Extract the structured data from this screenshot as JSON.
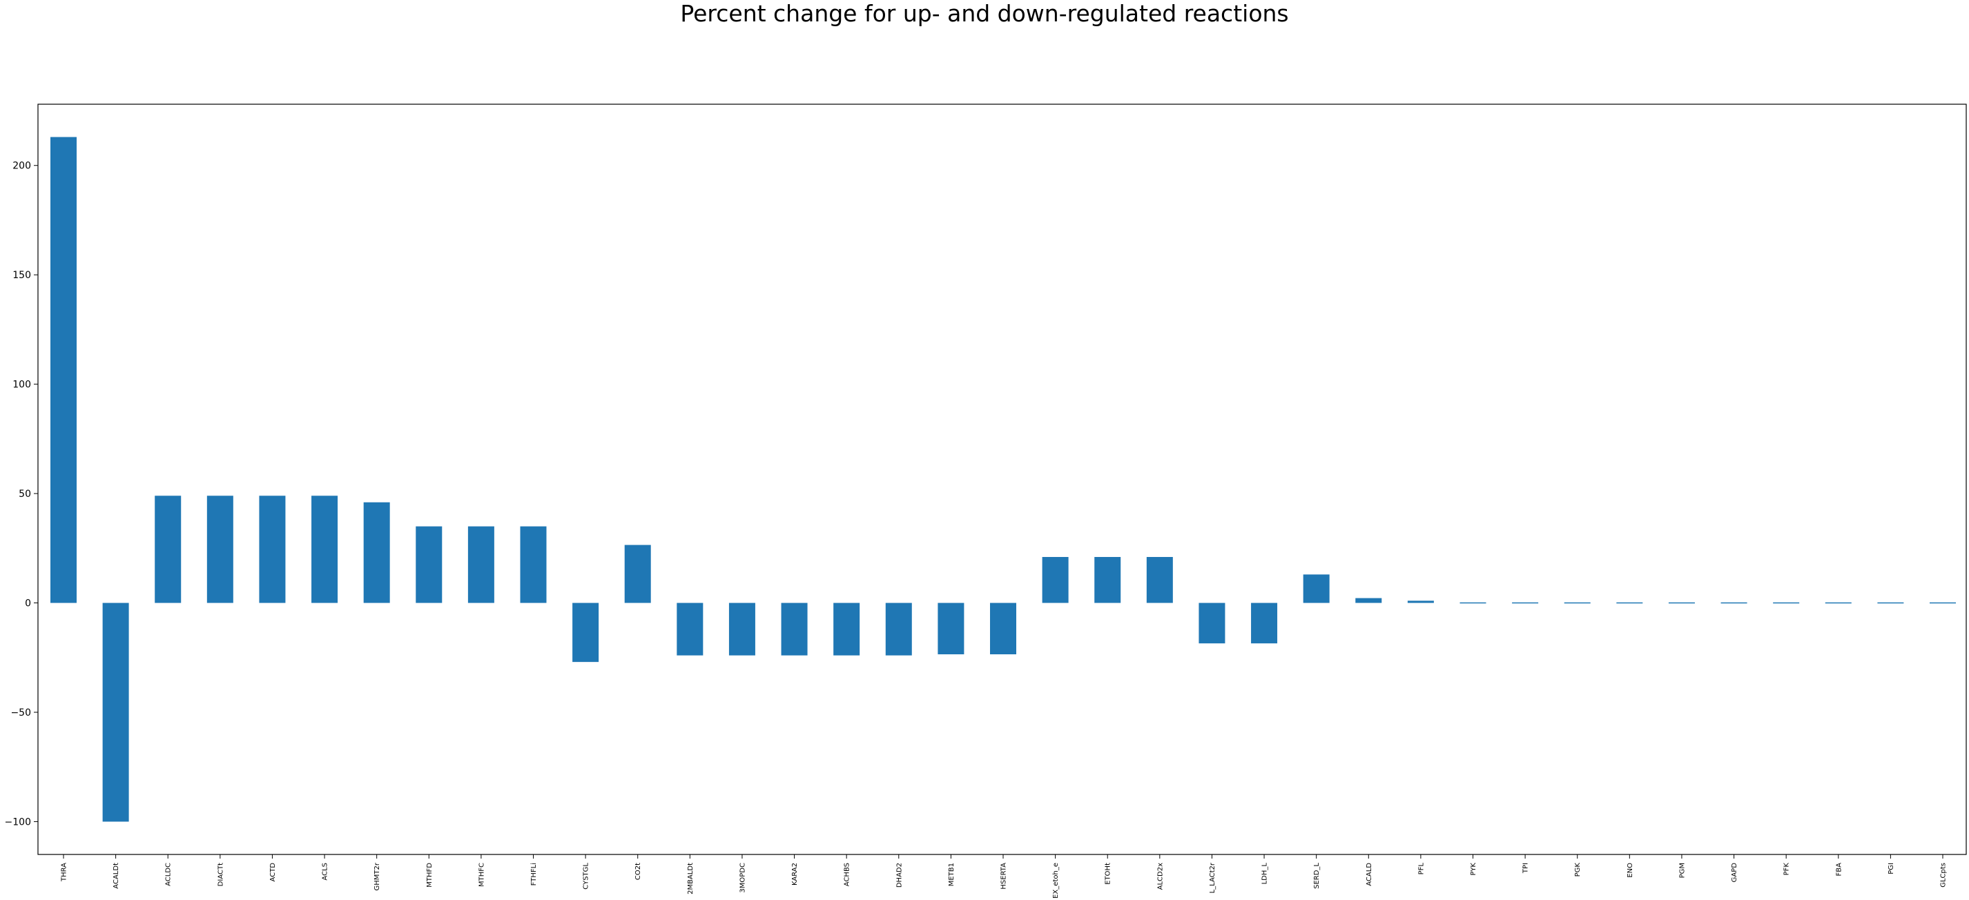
{
  "chart_data": {
    "type": "bar",
    "title": "Percent change for up- and down-regulated reactions",
    "xlabel": "",
    "ylabel": "",
    "categories": [
      "THRA",
      "ACALDt",
      "ACLDC",
      "DIACTt",
      "ACTD",
      "ACLS",
      "GHMT2r",
      "MTHFD",
      "MTHFC",
      "FTHFLi",
      "CYSTGL",
      "CO2t",
      "2MBALDt",
      "3MOPDC",
      "KARA2",
      "ACHBS",
      "DHAD2",
      "METB1",
      "HSERTA",
      "EX_etoh_e",
      "ETOHt",
      "ALCD2x",
      "L_LACt2r",
      "LDH_L",
      "SERD_L",
      "ACALD",
      "PFL",
      "PYK",
      "TPI",
      "PGK",
      "ENO",
      "PGM",
      "GAPD",
      "PFK",
      "FBA",
      "PGI",
      "GLCpts"
    ],
    "values": [
      213,
      -100,
      49,
      49,
      49,
      49,
      46,
      35,
      35,
      35,
      -27,
      26.5,
      -24,
      -24,
      -24,
      -24,
      -24,
      -23.5,
      -23.5,
      21,
      21,
      21,
      -18.5,
      -18.5,
      13,
      2.2,
      1,
      0.4,
      0.4,
      0.4,
      0.4,
      0.4,
      0.4,
      0.4,
      0.4,
      0.4,
      0.4
    ],
    "ylim": [
      -115,
      228
    ],
    "yticks": [
      -100,
      -50,
      0,
      50,
      100,
      150,
      200
    ],
    "ytick_labels": [
      "−100",
      "−50",
      "0",
      "50",
      "100",
      "150",
      "200"
    ],
    "bar_color": "#1f77b4",
    "grid": false,
    "legend": "none"
  }
}
